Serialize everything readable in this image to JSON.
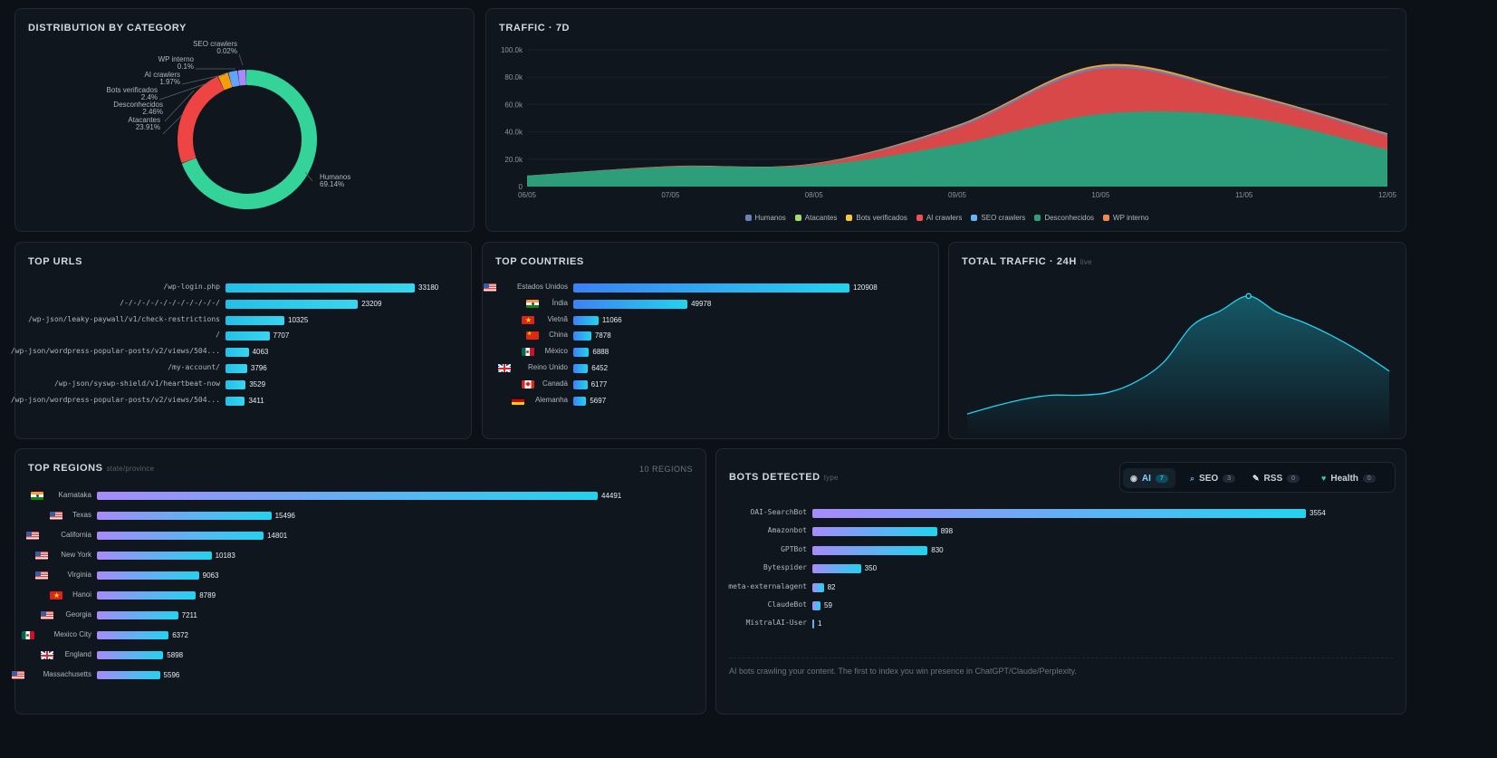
{
  "category": {
    "title": "DISTRIBUTION BY CATEGORY",
    "slices": [
      {
        "name": "Humanos",
        "pct": "69.14%",
        "value": 69.14,
        "color": "#34d399"
      },
      {
        "name": "Atacantes",
        "pct": "23.91%",
        "value": 23.91,
        "color": "#ef4444"
      },
      {
        "name": "Desconhecidos",
        "pct": "2.46%",
        "value": 2.46,
        "color": "#ef4444"
      },
      {
        "name": "Bots verificados",
        "pct": "2.4%",
        "value": 2.4,
        "color": "#f59e0b"
      },
      {
        "name": "AI crawlers",
        "pct": "1.97%",
        "value": 1.97,
        "color": "#60a5fa"
      },
      {
        "name": "WP interno",
        "pct": "0.1%",
        "value": 0.1,
        "color": "#a78bfa"
      },
      {
        "name": "SEO crawlers",
        "pct": "0.02%",
        "value": 0.02,
        "color": "#a78bfa"
      }
    ]
  },
  "traffic7d": {
    "title": "TRAFFIC · 7D",
    "chart_data": {
      "type": "area",
      "x": [
        "06/05",
        "07/05",
        "08/05",
        "09/05",
        "10/05",
        "11/05",
        "12/05"
      ],
      "yticks": [
        "100.0k",
        "80.0k",
        "60.0k",
        "40.0k",
        "20.0k",
        "0"
      ],
      "ylim": [
        0,
        100000
      ],
      "stacked": true,
      "series": [
        {
          "name": "Humanos",
          "color": "#6b7fb8",
          "values": [
            0,
            0,
            0,
            0,
            0,
            0,
            0
          ]
        },
        {
          "name": "Atacantes",
          "color": "#a3d977",
          "values": [
            0,
            0,
            0,
            0,
            0,
            0,
            0
          ]
        },
        {
          "name": "Bots verificados",
          "color": "#f5c842",
          "values": [
            0,
            0,
            0,
            0,
            0,
            0,
            0
          ]
        },
        {
          "name": "AI crawlers",
          "color": "#ef5350",
          "values": [
            0,
            0,
            0,
            0,
            0,
            0,
            0
          ]
        },
        {
          "name": "SEO crawlers",
          "color": "#64b5f6",
          "values": [
            0,
            0,
            0,
            0,
            0,
            0,
            0
          ]
        },
        {
          "name": "Desconhecidos",
          "color": "#2e9e7a",
          "values": [
            8000,
            14500,
            15500,
            31000,
            53000,
            51000,
            27000
          ]
        },
        {
          "name": "WP interno",
          "color": "#f08a4b",
          "values": [
            0,
            0,
            0,
            0,
            0,
            0,
            0
          ]
        }
      ],
      "stack_top": [
        8000,
        15000,
        17000,
        45000,
        89000,
        69000,
        39000
      ],
      "red_top": [
        8000,
        14800,
        16500,
        43000,
        86000,
        67000,
        37000
      ]
    }
  },
  "topUrls": {
    "title": "TOP URLS",
    "items": [
      {
        "label": "/wp-login.php",
        "value": 33180
      },
      {
        "label": "/-/-/-/-/-/-/-/-/-/-/-/",
        "value": 23209
      },
      {
        "label": "/wp-json/leaky-paywall/v1/check-restrictions",
        "value": 10325
      },
      {
        "label": "/",
        "value": 7707
      },
      {
        "label": "/wp-json/wordpress-popular-posts/v2/views/504...",
        "value": 4063
      },
      {
        "label": "/my-account/",
        "value": 3796
      },
      {
        "label": "/wp-json/syswp-shield/v1/heartbeat-now",
        "value": 3529
      },
      {
        "label": "/wp-json/wordpress-popular-posts/v2/views/504...",
        "value": 3411
      }
    ]
  },
  "topCountries": {
    "title": "TOP COUNTRIES",
    "items": [
      {
        "label": "Estados Unidos",
        "value": 120908,
        "flag": "us"
      },
      {
        "label": "Índia",
        "value": 49978,
        "flag": "in"
      },
      {
        "label": "Vietnã",
        "value": 11066,
        "flag": "vn"
      },
      {
        "label": "China",
        "value": 7878,
        "flag": "cn"
      },
      {
        "label": "México",
        "value": 6888,
        "flag": "mx"
      },
      {
        "label": "Reino Unido",
        "value": 6452,
        "flag": "gb"
      },
      {
        "label": "Canadá",
        "value": 6177,
        "flag": "ca"
      },
      {
        "label": "Alemanha",
        "value": 5697,
        "flag": "de"
      }
    ]
  },
  "total24h": {
    "title": "TOTAL TRAFFIC · 24H",
    "badge": "live",
    "chart_data": {
      "type": "line",
      "values": [
        0.06,
        0.12,
        0.17,
        0.2,
        0.2,
        0.22,
        0.3,
        0.45,
        0.72,
        0.83,
        0.94,
        0.82,
        0.74,
        0.64,
        0.52,
        0.38
      ],
      "peak_index": 10
    }
  },
  "topRegions": {
    "title": "TOP REGIONS",
    "subtitle": "state/province",
    "count": "10 REGIONS",
    "items": [
      {
        "label": "Karnataka",
        "value": 44491,
        "flag": "in"
      },
      {
        "label": "Texas",
        "value": 15496,
        "flag": "us"
      },
      {
        "label": "California",
        "value": 14801,
        "flag": "us"
      },
      {
        "label": "New York",
        "value": 10183,
        "flag": "us"
      },
      {
        "label": "Virginia",
        "value": 9063,
        "flag": "us"
      },
      {
        "label": "Hanoi",
        "value": 8789,
        "flag": "vn"
      },
      {
        "label": "Georgia",
        "value": 7211,
        "flag": "us"
      },
      {
        "label": "Mexico City",
        "value": 6372,
        "flag": "mx"
      },
      {
        "label": "England",
        "value": 5898,
        "flag": "gb"
      },
      {
        "label": "Massachusetts",
        "value": 5596,
        "flag": "us"
      }
    ]
  },
  "bots": {
    "title": "BOTS DETECTED",
    "subtitle": "type",
    "tabs": [
      {
        "label": "AI",
        "count": "7",
        "icon": "robot-icon",
        "active": true
      },
      {
        "label": "SEO",
        "count": "3",
        "icon": "magnifier-icon",
        "active": false
      },
      {
        "label": "RSS",
        "count": "0",
        "icon": "rss-icon",
        "active": false
      },
      {
        "label": "Health",
        "count": "0",
        "icon": "heart-icon",
        "active": false
      }
    ],
    "items": [
      {
        "label": "OAI-SearchBot",
        "value": 3554
      },
      {
        "label": "Amazonbot",
        "value": 898
      },
      {
        "label": "GPTBot",
        "value": 830
      },
      {
        "label": "Bytespider",
        "value": 350
      },
      {
        "label": "meta-externalagent",
        "value": 82
      },
      {
        "label": "ClaudeBot",
        "value": 59
      },
      {
        "label": "MistralAI-User",
        "value": 1
      }
    ],
    "footer": "AI bots crawling your content. The first to index you win presence in ChatGPT/Claude/Perplexity."
  }
}
